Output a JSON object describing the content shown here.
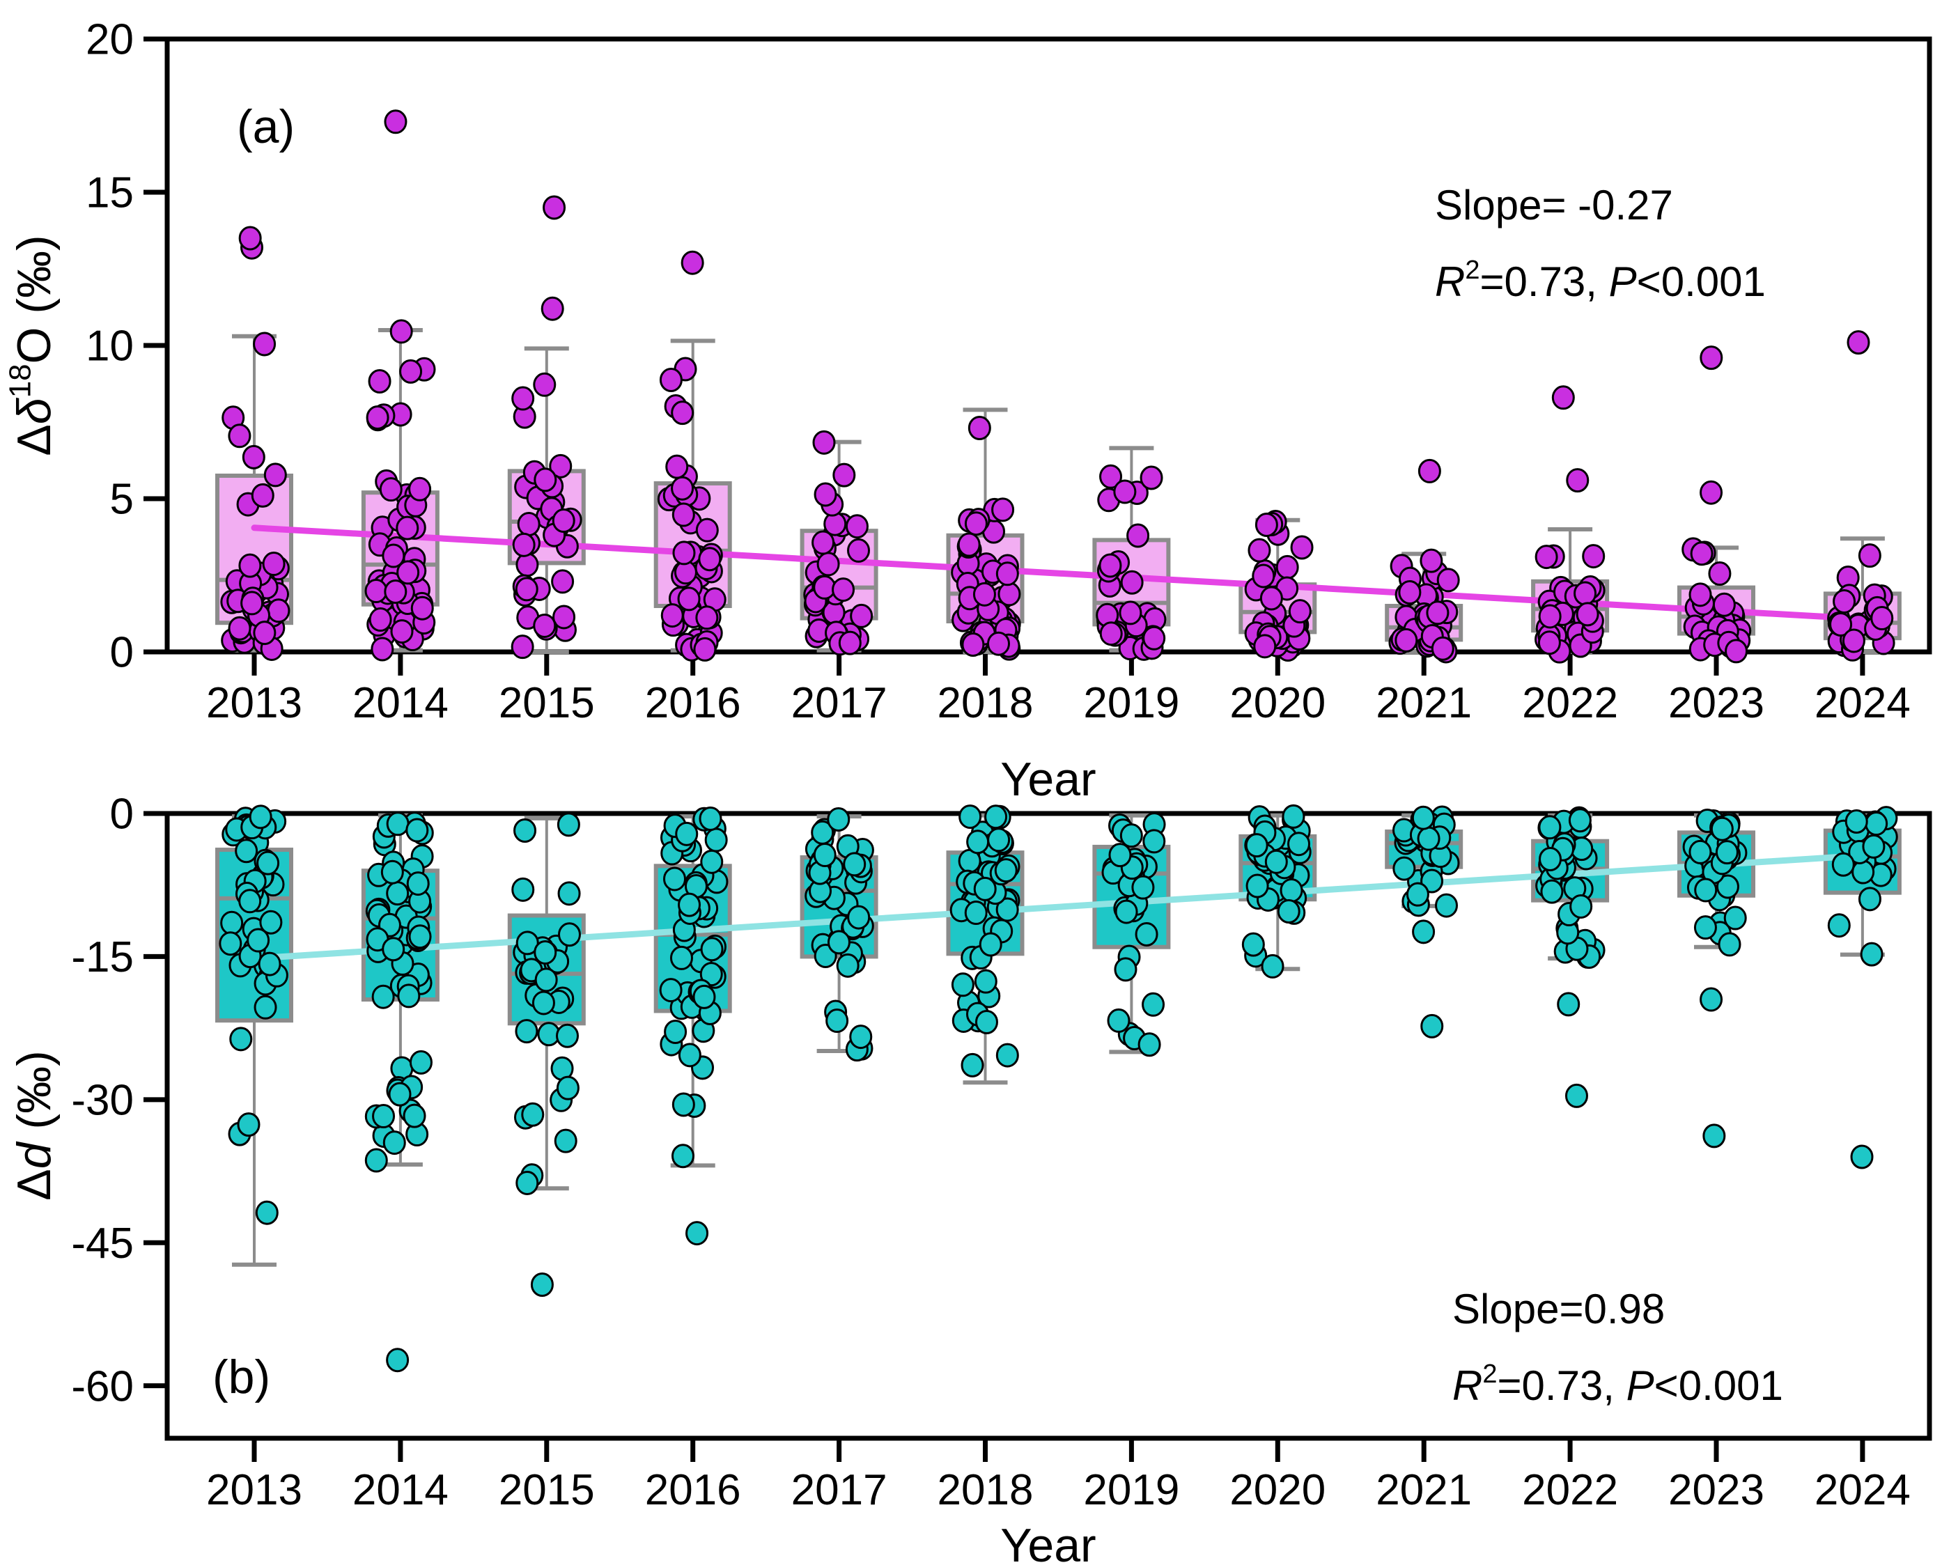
{
  "figure_description": "Two-panel year-wise box plots with jittered points and linear trend lines",
  "x_axis_label": "Year",
  "categories": [
    "2013",
    "2014",
    "2015",
    "2016",
    "2017",
    "2018",
    "2019",
    "2020",
    "2021",
    "2022",
    "2023",
    "2024"
  ],
  "chart_data": [
    {
      "type": "box",
      "panel_label": "(a)",
      "ylabel_segments": [
        {
          "t": "Δ"
        },
        {
          "t": "δ",
          "italic": true
        },
        {
          "t": "18",
          "sup": true
        },
        {
          "t": "O (‰)"
        }
      ],
      "xlabel": "Year",
      "ylim": [
        0,
        20
      ],
      "yticks": [
        0,
        5,
        10,
        15,
        20
      ],
      "grid": false,
      "annotation": {
        "line1": "Slope= -0.27",
        "line2_segments": [
          {
            "t": "R",
            "italic": true
          },
          {
            "t": "2",
            "sup": true
          },
          {
            "t": "=0.73, "
          },
          {
            "t": "P",
            "italic": true
          },
          {
            "t": "<0.001"
          }
        ]
      },
      "trend": {
        "start_year": "2013",
        "end_year": "2024",
        "start_value": 4.05,
        "end_value": 1.08,
        "slope": -0.27
      },
      "colors": {
        "point_fill": "#c92fe0",
        "point_edge": "#000000",
        "box_fill": "#f2aef2",
        "box_edge": "#8c8c8c",
        "whisker": "#8c8c8c",
        "trend": "#e545e5"
      },
      "years": [
        {
          "year": "2013",
          "whisker_low": 0.05,
          "q1": 0.95,
          "median": 2.35,
          "q3": 5.75,
          "whisker_high": 10.3,
          "n": 44,
          "outliers": [
            13.2,
            13.5
          ]
        },
        {
          "year": "2014",
          "whisker_low": 0.05,
          "q1": 1.55,
          "median": 2.85,
          "q3": 5.2,
          "whisker_high": 10.5,
          "n": 56,
          "outliers": [
            17.3
          ]
        },
        {
          "year": "2015",
          "whisker_low": 0.0,
          "q1": 2.9,
          "median": 4.25,
          "q3": 5.9,
          "whisker_high": 9.9,
          "n": 34,
          "outliers": [
            14.5,
            11.2
          ]
        },
        {
          "year": "2016",
          "whisker_low": 0.05,
          "q1": 1.5,
          "median": 3.3,
          "q3": 5.5,
          "whisker_high": 10.15,
          "n": 50,
          "outliers": [
            12.7
          ]
        },
        {
          "year": "2017",
          "whisker_low": 0.05,
          "q1": 1.1,
          "median": 2.1,
          "q3": 3.95,
          "whisker_high": 6.85,
          "n": 42,
          "outliers": []
        },
        {
          "year": "2018",
          "whisker_low": 0.0,
          "q1": 1.0,
          "median": 1.9,
          "q3": 3.8,
          "whisker_high": 7.9,
          "n": 46,
          "outliers": []
        },
        {
          "year": "2019",
          "whisker_low": 0.05,
          "q1": 0.9,
          "median": 1.6,
          "q3": 3.65,
          "whisker_high": 6.65,
          "n": 30,
          "outliers": []
        },
        {
          "year": "2020",
          "whisker_low": 0.05,
          "q1": 0.65,
          "median": 1.3,
          "q3": 2.2,
          "whisker_high": 4.3,
          "n": 40,
          "outliers": []
        },
        {
          "year": "2021",
          "whisker_low": 0.0,
          "q1": 0.4,
          "median": 0.8,
          "q3": 1.5,
          "whisker_high": 3.2,
          "n": 36,
          "outliers": [
            5.9
          ]
        },
        {
          "year": "2022",
          "whisker_low": 0.0,
          "q1": 0.7,
          "median": 1.4,
          "q3": 2.3,
          "whisker_high": 4.0,
          "n": 34,
          "outliers": [
            8.3,
            5.6
          ]
        },
        {
          "year": "2023",
          "whisker_low": 0.0,
          "q1": 0.6,
          "median": 1.15,
          "q3": 2.1,
          "whisker_high": 3.4,
          "n": 30,
          "outliers": [
            9.6,
            5.2
          ]
        },
        {
          "year": "2024",
          "whisker_low": 0.0,
          "q1": 0.45,
          "median": 0.95,
          "q3": 1.9,
          "whisker_high": 3.7,
          "n": 24,
          "outliers": [
            10.1
          ]
        }
      ]
    },
    {
      "type": "box",
      "panel_label": "(b)",
      "ylabel_segments": [
        {
          "t": "Δ"
        },
        {
          "t": "d",
          "italic": true
        },
        {
          "t": " (‰)"
        }
      ],
      "xlabel": "Year",
      "ylim": [
        -65.5,
        0
      ],
      "yticks": [
        0,
        -15,
        -30,
        -45,
        -60
      ],
      "grid": false,
      "annotation": {
        "line1": "Slope=0.98",
        "line2_segments": [
          {
            "t": "R",
            "italic": true
          },
          {
            "t": "2",
            "sup": true
          },
          {
            "t": "=0.73, "
          },
          {
            "t": "P",
            "italic": true
          },
          {
            "t": "<0.001"
          }
        ]
      },
      "trend": {
        "start_year": "2013",
        "end_year": "2024",
        "start_value": -15.2,
        "end_value": -4.4,
        "slope": 0.98
      },
      "colors": {
        "point_fill": "#1ec7c7",
        "point_edge": "#000000",
        "box_fill": "#1ec7c7",
        "box_edge": "#8c8c8c",
        "whisker": "#8c8c8c",
        "trend": "#8fe3e3"
      },
      "years": [
        {
          "year": "2013",
          "whisker_high": -0.3,
          "q3": -3.8,
          "median": -8.9,
          "q1": -21.7,
          "whisker_low": -47.3,
          "n": 40,
          "outliers": []
        },
        {
          "year": "2014",
          "whisker_high": -0.2,
          "q3": -6.0,
          "median": -11.0,
          "q1": -19.5,
          "whisker_low": -36.8,
          "n": 56,
          "outliers": [
            -57.3
          ]
        },
        {
          "year": "2015",
          "whisker_high": -0.5,
          "q3": -10.7,
          "median": -16.8,
          "q1": -22.0,
          "whisker_low": -39.3,
          "n": 36,
          "outliers": [
            -49.4
          ]
        },
        {
          "year": "2016",
          "whisker_high": -0.3,
          "q3": -5.5,
          "median": -12.7,
          "q1": -20.7,
          "whisker_low": -36.9,
          "n": 50,
          "outliers": [
            -44.0
          ]
        },
        {
          "year": "2017",
          "whisker_high": -0.3,
          "q3": -4.6,
          "median": -8.1,
          "q1": -15.0,
          "whisker_low": -24.9,
          "n": 42,
          "outliers": []
        },
        {
          "year": "2018",
          "whisker_high": -0.2,
          "q3": -4.1,
          "median": -7.4,
          "q1": -14.7,
          "whisker_low": -28.2,
          "n": 46,
          "outliers": []
        },
        {
          "year": "2019",
          "whisker_high": -0.2,
          "q3": -3.5,
          "median": -6.3,
          "q1": -14.0,
          "whisker_low": -25.0,
          "n": 30,
          "outliers": []
        },
        {
          "year": "2020",
          "whisker_high": -0.2,
          "q3": -2.4,
          "median": -5.2,
          "q1": -9.0,
          "whisker_low": -16.3,
          "n": 40,
          "outliers": []
        },
        {
          "year": "2021",
          "whisker_high": -0.2,
          "q3": -1.9,
          "median": -3.1,
          "q1": -5.6,
          "whisker_low": -9.7,
          "n": 36,
          "outliers": [
            -12.4,
            -22.3
          ]
        },
        {
          "year": "2022",
          "whisker_high": -0.2,
          "q3": -2.9,
          "median": -5.8,
          "q1": -9.1,
          "whisker_low": -15.2,
          "n": 34,
          "outliers": [
            -20.0,
            -29.6
          ]
        },
        {
          "year": "2023",
          "whisker_high": -0.2,
          "q3": -2.0,
          "median": -5.2,
          "q1": -8.6,
          "whisker_low": -14.0,
          "n": 30,
          "outliers": [
            -19.5,
            -33.8
          ]
        },
        {
          "year": "2024",
          "whisker_high": -0.2,
          "q3": -1.8,
          "median": -4.5,
          "q1": -8.3,
          "whisker_low": -14.8,
          "n": 24,
          "outliers": [
            -36.0
          ]
        }
      ]
    }
  ]
}
